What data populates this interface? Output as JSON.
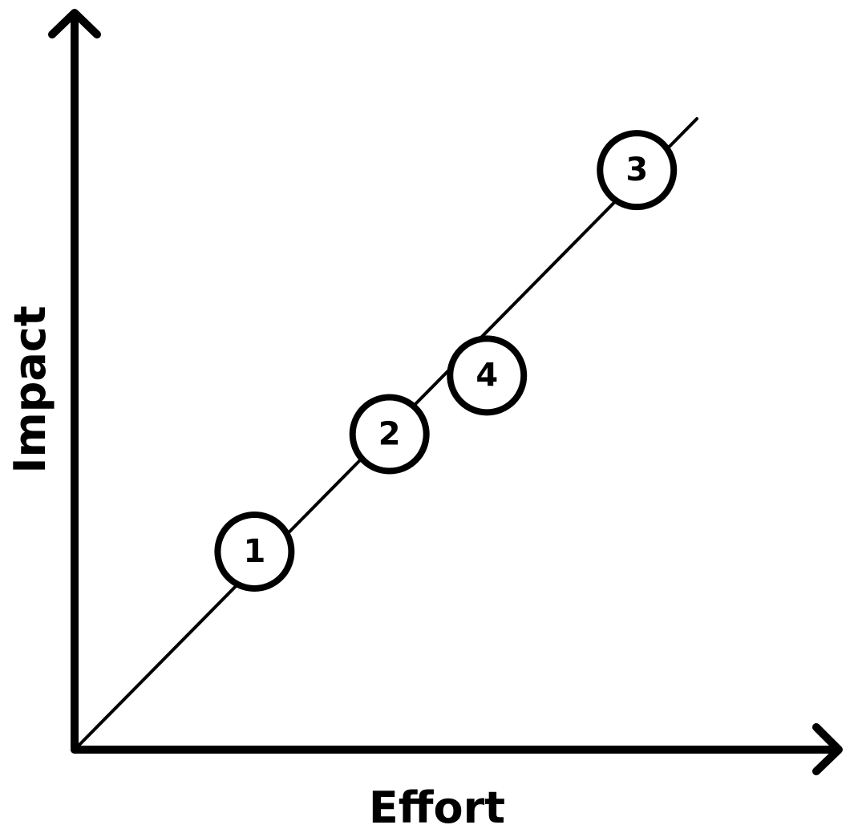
{
  "chart_data": {
    "type": "scatter",
    "title": "",
    "xlabel": "Effort",
    "ylabel": "Impact",
    "xlim": [
      0,
      100
    ],
    "ylim": [
      0,
      100
    ],
    "grid": false,
    "show_tick_labels": false,
    "trendline": {
      "x": [
        0,
        83
      ],
      "y": [
        0,
        86
      ]
    },
    "points": [
      {
        "label": "1",
        "x": 24,
        "y": 27
      },
      {
        "label": "2",
        "x": 42,
        "y": 43
      },
      {
        "label": "3",
        "x": 75,
        "y": 79
      },
      {
        "label": "4",
        "x": 55,
        "y": 51
      }
    ]
  }
}
